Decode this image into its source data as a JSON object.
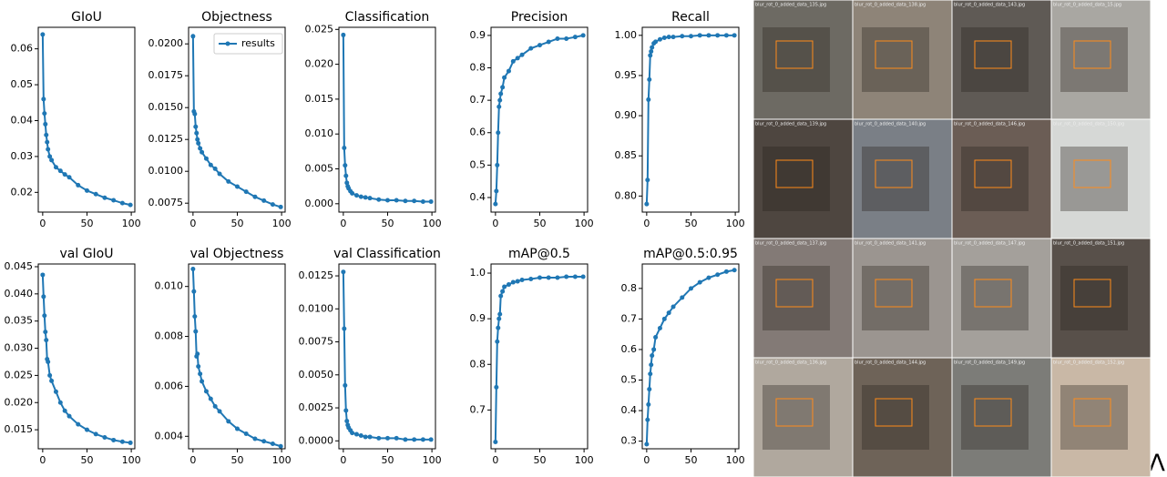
{
  "chart_data": [
    {
      "type": "line",
      "title": "GIoU",
      "x": [
        0,
        1,
        2,
        3,
        4,
        5,
        6,
        8,
        10,
        15,
        20,
        25,
        30,
        40,
        50,
        60,
        70,
        80,
        90,
        99
      ],
      "xlim": [
        -5,
        104
      ],
      "xticks": [
        0,
        50,
        100
      ],
      "ylim": [
        0.0145,
        0.066
      ],
      "yticks": [
        0.02,
        0.03,
        0.04,
        0.05,
        0.06
      ],
      "series": [
        {
          "color": "#1f77b4",
          "values": [
            0.064,
            0.046,
            0.042,
            0.039,
            0.036,
            0.034,
            0.032,
            0.03,
            0.029,
            0.027,
            0.026,
            0.025,
            0.0242,
            0.022,
            0.0205,
            0.0195,
            0.0185,
            0.0178,
            0.017,
            0.0165
          ]
        }
      ]
    },
    {
      "type": "line",
      "title": "Objectness",
      "x": [
        0,
        1,
        2,
        3,
        4,
        5,
        6,
        8,
        10,
        15,
        20,
        25,
        30,
        40,
        50,
        60,
        70,
        80,
        90,
        99
      ],
      "xlim": [
        -5,
        104
      ],
      "xticks": [
        0,
        50,
        100
      ],
      "ylim": [
        0.0068,
        0.0213
      ],
      "yticks": [
        0.0075,
        {
          "value": 0.01,
          "label": "0.0100"
        },
        0.0125,
        {
          "value": 0.015,
          "label": "0.0150"
        },
        0.0175,
        {
          "value": 0.02,
          "label": "0.0200"
        }
      ],
      "legend": "upper right",
      "series": [
        {
          "name": "results",
          "color": "#1f77b4",
          "values": [
            0.0206,
            0.0147,
            0.0145,
            0.0135,
            0.013,
            0.0125,
            0.0122,
            0.0118,
            0.0115,
            0.011,
            0.0105,
            0.0102,
            0.0098,
            0.0092,
            0.0088,
            0.0084,
            0.008,
            0.0077,
            0.0074,
            0.0072
          ]
        }
      ]
    },
    {
      "type": "line",
      "title": "Classification",
      "x": [
        0,
        1,
        2,
        3,
        4,
        5,
        6,
        8,
        10,
        15,
        20,
        25,
        30,
        40,
        50,
        60,
        70,
        80,
        90,
        99
      ],
      "xlim": [
        -5,
        104
      ],
      "xticks": [
        0,
        50,
        100
      ],
      "ylim": [
        -0.0012,
        0.0253
      ],
      "yticks": [
        {
          "value": 0,
          "label": "0.000"
        },
        0.005,
        {
          "value": 0.01,
          "label": "0.010"
        },
        0.015,
        {
          "value": 0.02,
          "label": "0.020"
        },
        0.025
      ],
      "series": [
        {
          "color": "#1f77b4",
          "values": [
            0.0242,
            0.008,
            0.0055,
            0.004,
            0.003,
            0.0025,
            0.0022,
            0.0018,
            0.0015,
            0.0012,
            0.001,
            0.0009,
            0.0008,
            0.0006,
            0.0005,
            0.0005,
            0.0004,
            0.0004,
            0.0003,
            0.0003
          ]
        }
      ]
    },
    {
      "type": "line",
      "title": "Precision",
      "x": [
        0,
        1,
        2,
        3,
        4,
        5,
        6,
        8,
        10,
        15,
        20,
        25,
        30,
        40,
        50,
        60,
        70,
        80,
        90,
        99
      ],
      "xlim": [
        -5,
        104
      ],
      "xticks": [
        0,
        50,
        100
      ],
      "ylim": [
        0.355,
        0.925
      ],
      "yticks": [
        0.4,
        0.5,
        0.6,
        0.7,
        0.8,
        0.9
      ],
      "series": [
        {
          "color": "#1f77b4",
          "values": [
            0.38,
            0.42,
            0.5,
            0.6,
            0.68,
            0.7,
            0.72,
            0.74,
            0.77,
            0.79,
            0.82,
            0.83,
            0.84,
            0.86,
            0.87,
            0.88,
            0.89,
            0.89,
            0.895,
            0.9
          ]
        }
      ]
    },
    {
      "type": "line",
      "title": "Recall",
      "x": [
        0,
        1,
        2,
        3,
        4,
        5,
        6,
        8,
        10,
        15,
        20,
        25,
        30,
        40,
        50,
        60,
        70,
        80,
        90,
        99
      ],
      "xlim": [
        -5,
        104
      ],
      "xticks": [
        0,
        50,
        100
      ],
      "ylim": [
        0.78,
        1.01
      ],
      "yticks": [
        {
          "value": 0.8,
          "label": "0.80"
        },
        {
          "value": 0.85,
          "label": "0.85"
        },
        {
          "value": 0.9,
          "label": "0.90"
        },
        0.95,
        {
          "value": 1,
          "label": "1.00"
        }
      ],
      "series": [
        {
          "color": "#1f77b4",
          "values": [
            0.79,
            0.82,
            0.92,
            0.945,
            0.975,
            0.98,
            0.985,
            0.99,
            0.992,
            0.995,
            0.997,
            0.998,
            0.998,
            0.999,
            0.999,
            1,
            1,
            1,
            1,
            1
          ]
        }
      ]
    },
    {
      "type": "line",
      "title": "val GIoU",
      "x": [
        0,
        1,
        2,
        3,
        4,
        5,
        6,
        8,
        10,
        15,
        20,
        25,
        30,
        40,
        50,
        60,
        70,
        80,
        90,
        99
      ],
      "xlim": [
        -5,
        104
      ],
      "xticks": [
        0,
        50,
        100
      ],
      "ylim": [
        0.0115,
        0.0455
      ],
      "yticks": [
        0.015,
        {
          "value": 0.02,
          "label": "0.020"
        },
        0.025,
        {
          "value": 0.03,
          "label": "0.030"
        },
        0.035,
        {
          "value": 0.04,
          "label": "0.040"
        },
        0.045
      ],
      "series": [
        {
          "color": "#1f77b4",
          "values": [
            0.0435,
            0.0395,
            0.036,
            0.033,
            0.0315,
            0.028,
            0.0275,
            0.025,
            0.024,
            0.022,
            0.02,
            0.0185,
            0.0175,
            0.016,
            0.015,
            0.0142,
            0.0136,
            0.0131,
            0.0128,
            0.0126
          ]
        }
      ]
    },
    {
      "type": "line",
      "title": "val Objectness",
      "x": [
        0,
        1,
        2,
        3,
        4,
        5,
        6,
        8,
        10,
        15,
        20,
        25,
        30,
        40,
        50,
        60,
        70,
        80,
        90,
        99
      ],
      "xlim": [
        -5,
        104
      ],
      "xticks": [
        0,
        50,
        100
      ],
      "ylim": [
        0.0035,
        0.0109
      ],
      "yticks": [
        0.004,
        0.006,
        0.008,
        {
          "value": 0.01,
          "label": "0.010"
        }
      ],
      "series": [
        {
          "color": "#1f77b4",
          "values": [
            0.0107,
            0.0098,
            0.0088,
            0.0082,
            0.0072,
            0.0073,
            0.0068,
            0.0065,
            0.0062,
            0.0058,
            0.0055,
            0.0052,
            0.005,
            0.0046,
            0.0043,
            0.0041,
            0.0039,
            0.0038,
            0.0037,
            0.0036
          ]
        }
      ]
    },
    {
      "type": "line",
      "title": "val Classification",
      "x": [
        0,
        1,
        2,
        3,
        4,
        5,
        6,
        8,
        10,
        15,
        20,
        25,
        30,
        40,
        50,
        60,
        70,
        80,
        90,
        99
      ],
      "xlim": [
        -5,
        104
      ],
      "xticks": [
        0,
        50,
        100
      ],
      "ylim": [
        -0.0006,
        0.0134
      ],
      "yticks": [
        {
          "value": 0,
          "label": "0.0000"
        },
        0.0025,
        {
          "value": 0.005,
          "label": "0.0050"
        },
        0.0075,
        {
          "value": 0.01,
          "label": "0.0100"
        },
        0.0125
      ],
      "series": [
        {
          "color": "#1f77b4",
          "values": [
            0.0128,
            0.0085,
            0.0042,
            0.0023,
            0.0015,
            0.0012,
            0.001,
            0.0008,
            0.0006,
            0.0005,
            0.0004,
            0.0003,
            0.0003,
            0.0002,
            0.0002,
            0.0002,
            0.0001,
            0.0001,
            0.0001,
            0.0001
          ]
        }
      ]
    },
    {
      "type": "line",
      "title": "mAP@0.5",
      "x": [
        0,
        1,
        2,
        3,
        4,
        5,
        6,
        8,
        10,
        15,
        20,
        25,
        30,
        40,
        50,
        60,
        70,
        80,
        90,
        99
      ],
      "xlim": [
        -5,
        104
      ],
      "xticks": [
        0,
        50,
        100
      ],
      "ylim": [
        0.615,
        1.02
      ],
      "yticks": [
        0.7,
        0.8,
        0.9,
        {
          "value": 1,
          "label": "1.0"
        }
      ],
      "series": [
        {
          "color": "#1f77b4",
          "values": [
            0.63,
            0.75,
            0.85,
            0.88,
            0.9,
            0.91,
            0.95,
            0.96,
            0.97,
            0.975,
            0.98,
            0.982,
            0.985,
            0.987,
            0.99,
            0.99,
            0.99,
            0.992,
            0.992,
            0.992
          ]
        }
      ]
    },
    {
      "type": "line",
      "title": "mAP@0.5:0.95",
      "x": [
        0,
        1,
        2,
        3,
        4,
        5,
        6,
        8,
        10,
        15,
        20,
        25,
        30,
        40,
        50,
        60,
        70,
        80,
        90,
        99
      ],
      "xlim": [
        -5,
        104
      ],
      "xticks": [
        0,
        50,
        100
      ],
      "ylim": [
        0.275,
        0.88
      ],
      "yticks": [
        0.3,
        0.4,
        0.5,
        0.6,
        0.7,
        0.8
      ],
      "series": [
        {
          "color": "#1f77b4",
          "values": [
            0.29,
            0.37,
            0.42,
            0.47,
            0.52,
            0.55,
            0.58,
            0.6,
            0.64,
            0.67,
            0.7,
            0.72,
            0.74,
            0.77,
            0.8,
            0.82,
            0.835,
            0.845,
            0.855,
            0.86
          ]
        }
      ]
    }
  ],
  "mosaic": {
    "tiles": [
      "blur_rot_0_added_data_135.jpg",
      "blur_rot_0_added_data_138.jpg",
      "blur_rot_0_added_data_143.jpg",
      "blur_rot_0_added_data_15.jpg",
      "blur_rot_0_added_data_139.jpg",
      "blur_rot_0_added_data_140.jpg",
      "blur_rot_0_added_data_146.jpg",
      "blur_rot_0_added_data_150.jpg",
      "blur_rot_0_added_data_137.jpg",
      "blur_rot_0_added_data_141.jpg",
      "blur_rot_0_added_data_147.jpg",
      "blur_rot_0_added_data_151.jpg",
      "blur_rot_0_added_data_136.jpg",
      "blur_rot_0_added_data_144.jpg",
      "blur_rot_0_added_data_149.jpg",
      "blur_rot_0_added_data_152.jpg"
    ],
    "corner_mark": "Λ"
  }
}
